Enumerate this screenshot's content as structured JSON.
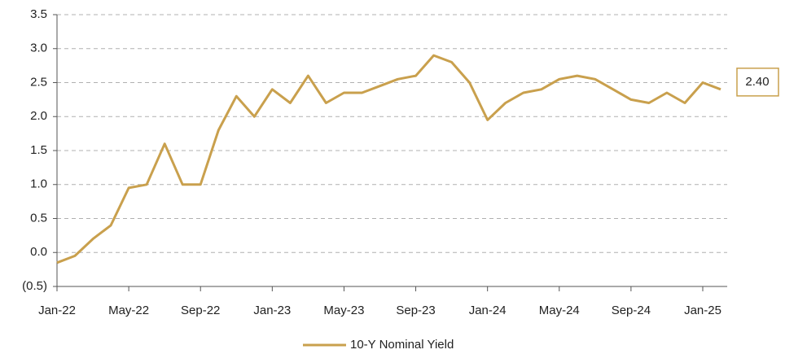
{
  "chart_data": {
    "type": "line",
    "x": [
      "Jan-22",
      null,
      null,
      null,
      "May-22",
      null,
      null,
      null,
      "Sep-22",
      null,
      null,
      null,
      "Jan-23",
      null,
      null,
      null,
      "May-23",
      null,
      null,
      null,
      "Sep-23",
      null,
      null,
      null,
      "Jan-24",
      null,
      null,
      null,
      "May-24",
      null,
      null,
      null,
      "Sep-24",
      null,
      null,
      null,
      "Jan-25",
      null
    ],
    "series": [
      {
        "name": "10-Y Nominal Yield",
        "color": "#c9a04d",
        "values": [
          -0.15,
          -0.05,
          0.2,
          0.4,
          0.95,
          1.0,
          1.6,
          1.0,
          1.0,
          1.8,
          2.3,
          2.0,
          2.4,
          2.2,
          2.6,
          2.2,
          2.35,
          2.35,
          2.45,
          2.55,
          2.6,
          2.9,
          2.8,
          2.5,
          1.95,
          2.2,
          2.35,
          2.4,
          2.55,
          2.6,
          2.55,
          2.4,
          2.25,
          2.2,
          2.35,
          2.2,
          2.5,
          2.4
        ],
        "value_labels": [
          null,
          null,
          null,
          null,
          null,
          null,
          null,
          null,
          null,
          null,
          null,
          null,
          null,
          null,
          null,
          null,
          null,
          null,
          null,
          null,
          null,
          null,
          null,
          null,
          null,
          null,
          null,
          null,
          null,
          null,
          null,
          null,
          null,
          null,
          null,
          null,
          null,
          "2.40"
        ]
      }
    ],
    "ylim": [
      -0.5,
      3.5
    ],
    "yticks": [
      {
        "value": -0.5,
        "label": "(0.5)"
      },
      {
        "value": 0,
        "label": "0.0"
      },
      0.5,
      {
        "value": 1,
        "label": "1.0"
      },
      1.5,
      {
        "value": 2,
        "label": "2.0"
      },
      2.5,
      {
        "value": 3,
        "label": "3.0"
      },
      3.5
    ],
    "grid": true
  }
}
